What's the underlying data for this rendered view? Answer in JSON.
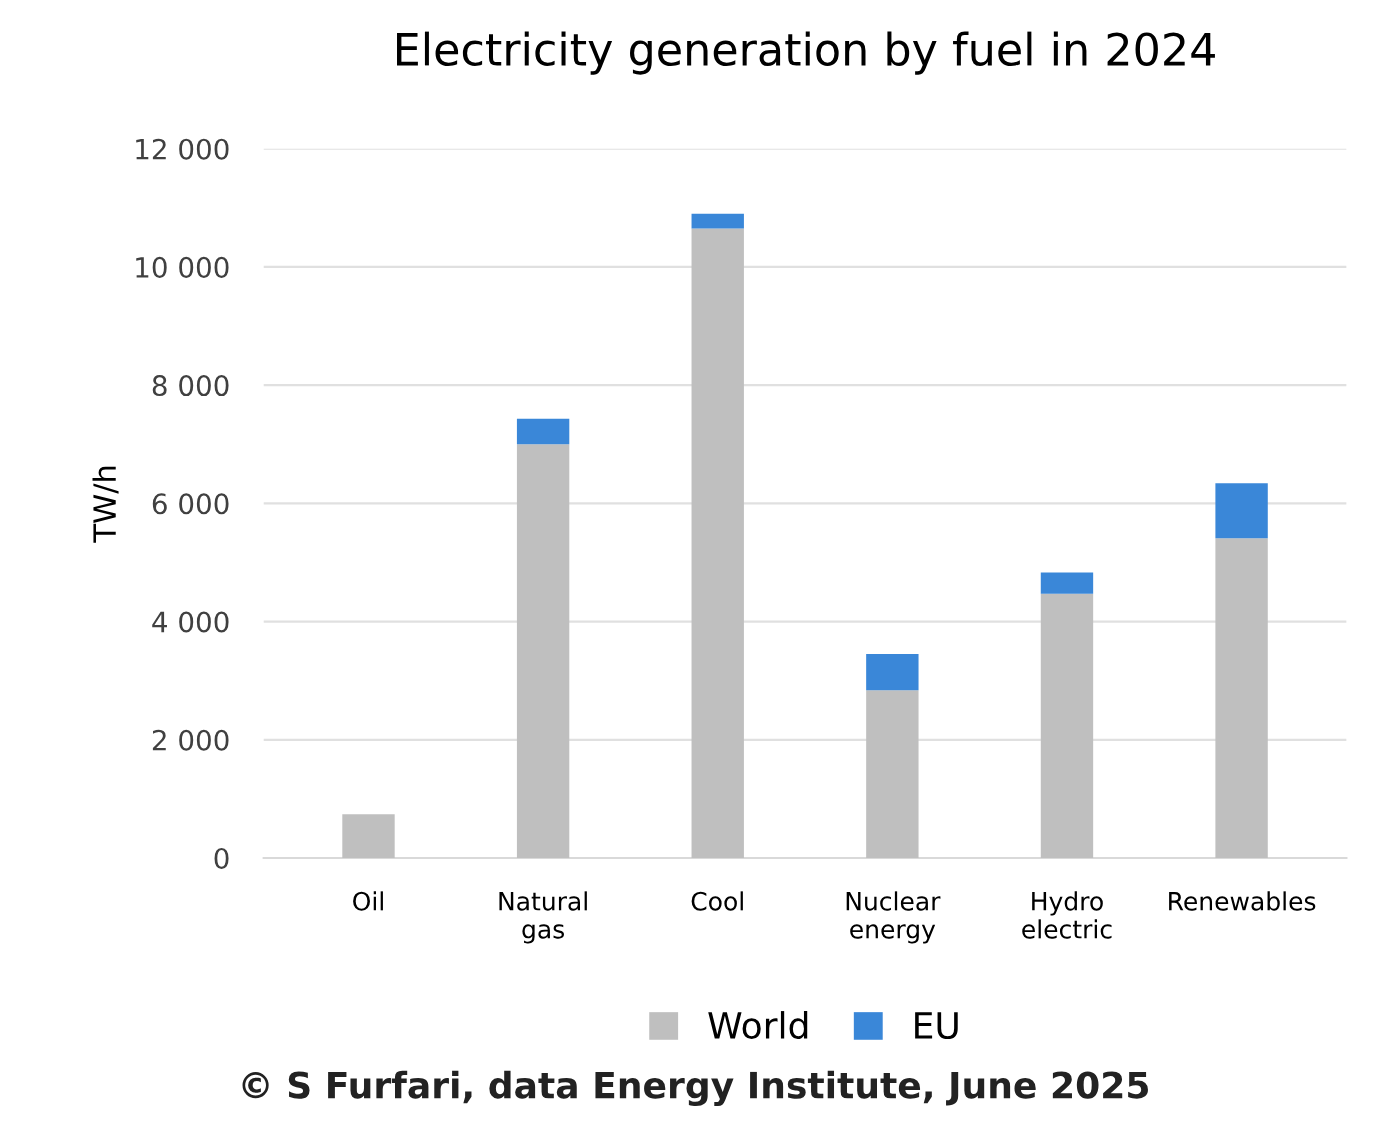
{
  "chart_data": {
    "type": "bar",
    "title": "Electricity generation by fuel in 2024",
    "ylabel": "TW/h",
    "categories": [
      "Oil",
      "Natural\ngas",
      "Cool",
      "Nuclear\nenergy",
      "Hydro\nelectric",
      "Renewables"
    ],
    "stacked": true,
    "series": [
      {
        "name": "World",
        "color": "#bfbfbf",
        "values": [
          740,
          7000,
          10650,
          2840,
          4470,
          5410
        ]
      },
      {
        "name": "EU",
        "color": "#3a87d8",
        "values": [
          0,
          430,
          250,
          610,
          360,
          930
        ]
      }
    ],
    "ylim": [
      0,
      12000
    ],
    "yticks": [
      0,
      {
        "value": 2000,
        "label": "2 000"
      },
      {
        "value": 4000,
        "label": "4 000"
      },
      {
        "value": 6000,
        "label": "6 000"
      },
      {
        "value": 8000,
        "label": "8 000"
      },
      {
        "value": 10000,
        "label": "10 000"
      },
      {
        "value": 12000,
        "label": "12 000"
      }
    ],
    "grid": "y",
    "legend": "bottom",
    "annotations": [
      "© S Furfari, data Energy Institute, June 2025"
    ]
  }
}
